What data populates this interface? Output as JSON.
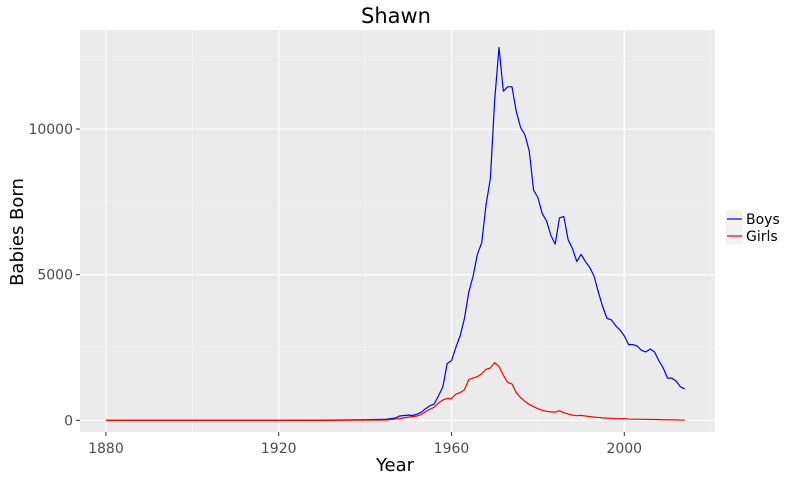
{
  "chart_data": {
    "type": "line",
    "title": "Shawn",
    "xlabel": "Year",
    "ylabel": "Babies Born",
    "xlim": [
      1874,
      2021
    ],
    "ylim": [
      -400,
      13400
    ],
    "x_ticks": [
      1880,
      1920,
      1960,
      2000
    ],
    "y_ticks": [
      0,
      5000,
      10000
    ],
    "grid": true,
    "legend_position": "right",
    "series": [
      {
        "name": "Boys",
        "color": "#0000ff",
        "points": [
          [
            1880,
            0
          ],
          [
            1920,
            0
          ],
          [
            1930,
            5
          ],
          [
            1940,
            20
          ],
          [
            1945,
            40
          ],
          [
            1947,
            80
          ],
          [
            1948,
            150
          ],
          [
            1950,
            180
          ],
          [
            1951,
            170
          ],
          [
            1952,
            210
          ],
          [
            1953,
            280
          ],
          [
            1954,
            400
          ],
          [
            1955,
            500
          ],
          [
            1956,
            560
          ],
          [
            1957,
            850
          ],
          [
            1958,
            1150
          ],
          [
            1959,
            1950
          ],
          [
            1960,
            2050
          ],
          [
            1961,
            2500
          ],
          [
            1962,
            2900
          ],
          [
            1963,
            3500
          ],
          [
            1964,
            4400
          ],
          [
            1965,
            4950
          ],
          [
            1966,
            5700
          ],
          [
            1967,
            6100
          ],
          [
            1968,
            7400
          ],
          [
            1969,
            8300
          ],
          [
            1970,
            11000
          ],
          [
            1971,
            12800
          ],
          [
            1972,
            11300
          ],
          [
            1973,
            11450
          ],
          [
            1974,
            11450
          ],
          [
            1975,
            10600
          ],
          [
            1976,
            10050
          ],
          [
            1977,
            9800
          ],
          [
            1978,
            9250
          ],
          [
            1979,
            7900
          ],
          [
            1980,
            7650
          ],
          [
            1981,
            7100
          ],
          [
            1982,
            6850
          ],
          [
            1983,
            6350
          ],
          [
            1984,
            6050
          ],
          [
            1985,
            6950
          ],
          [
            1986,
            7000
          ],
          [
            1987,
            6200
          ],
          [
            1988,
            5900
          ],
          [
            1989,
            5450
          ],
          [
            1990,
            5700
          ],
          [
            1991,
            5450
          ],
          [
            1992,
            5250
          ],
          [
            1993,
            4950
          ],
          [
            1994,
            4400
          ],
          [
            1995,
            3900
          ],
          [
            1996,
            3500
          ],
          [
            1997,
            3450
          ],
          [
            1998,
            3250
          ],
          [
            1999,
            3100
          ],
          [
            2000,
            2900
          ],
          [
            2001,
            2600
          ],
          [
            2002,
            2600
          ],
          [
            2003,
            2550
          ],
          [
            2004,
            2400
          ],
          [
            2005,
            2350
          ],
          [
            2006,
            2450
          ],
          [
            2007,
            2350
          ],
          [
            2008,
            2050
          ],
          [
            2009,
            1800
          ],
          [
            2010,
            1450
          ],
          [
            2011,
            1450
          ],
          [
            2012,
            1350
          ],
          [
            2013,
            1150
          ],
          [
            2014,
            1080
          ]
        ]
      },
      {
        "name": "Girls",
        "color": "#ff0000",
        "points": [
          [
            1880,
            0
          ],
          [
            1930,
            0
          ],
          [
            1945,
            10
          ],
          [
            1948,
            60
          ],
          [
            1950,
            110
          ],
          [
            1952,
            150
          ],
          [
            1953,
            200
          ],
          [
            1954,
            300
          ],
          [
            1955,
            380
          ],
          [
            1956,
            450
          ],
          [
            1957,
            600
          ],
          [
            1958,
            700
          ],
          [
            1959,
            750
          ],
          [
            1960,
            750
          ],
          [
            1961,
            900
          ],
          [
            1962,
            950
          ],
          [
            1963,
            1050
          ],
          [
            1964,
            1400
          ],
          [
            1965,
            1450
          ],
          [
            1966,
            1500
          ],
          [
            1967,
            1600
          ],
          [
            1968,
            1750
          ],
          [
            1969,
            1800
          ],
          [
            1970,
            1980
          ],
          [
            1971,
            1850
          ],
          [
            1972,
            1550
          ],
          [
            1973,
            1300
          ],
          [
            1974,
            1250
          ],
          [
            1975,
            950
          ],
          [
            1976,
            780
          ],
          [
            1977,
            650
          ],
          [
            1978,
            550
          ],
          [
            1979,
            470
          ],
          [
            1980,
            400
          ],
          [
            1981,
            350
          ],
          [
            1982,
            310
          ],
          [
            1983,
            290
          ],
          [
            1984,
            280
          ],
          [
            1985,
            330
          ],
          [
            1986,
            260
          ],
          [
            1987,
            220
          ],
          [
            1988,
            180
          ],
          [
            1989,
            160
          ],
          [
            1990,
            170
          ],
          [
            1991,
            150
          ],
          [
            1992,
            130
          ],
          [
            1993,
            110
          ],
          [
            1994,
            100
          ],
          [
            1995,
            85
          ],
          [
            1996,
            75
          ],
          [
            1997,
            70
          ],
          [
            1998,
            60
          ],
          [
            1999,
            55
          ],
          [
            2000,
            60
          ],
          [
            2001,
            45
          ],
          [
            2002,
            40
          ],
          [
            2003,
            40
          ],
          [
            2004,
            35
          ],
          [
            2005,
            35
          ],
          [
            2006,
            30
          ],
          [
            2007,
            30
          ],
          [
            2008,
            25
          ],
          [
            2009,
            20
          ],
          [
            2010,
            20
          ],
          [
            2011,
            15
          ],
          [
            2012,
            15
          ],
          [
            2013,
            10
          ],
          [
            2014,
            10
          ]
        ]
      }
    ]
  }
}
